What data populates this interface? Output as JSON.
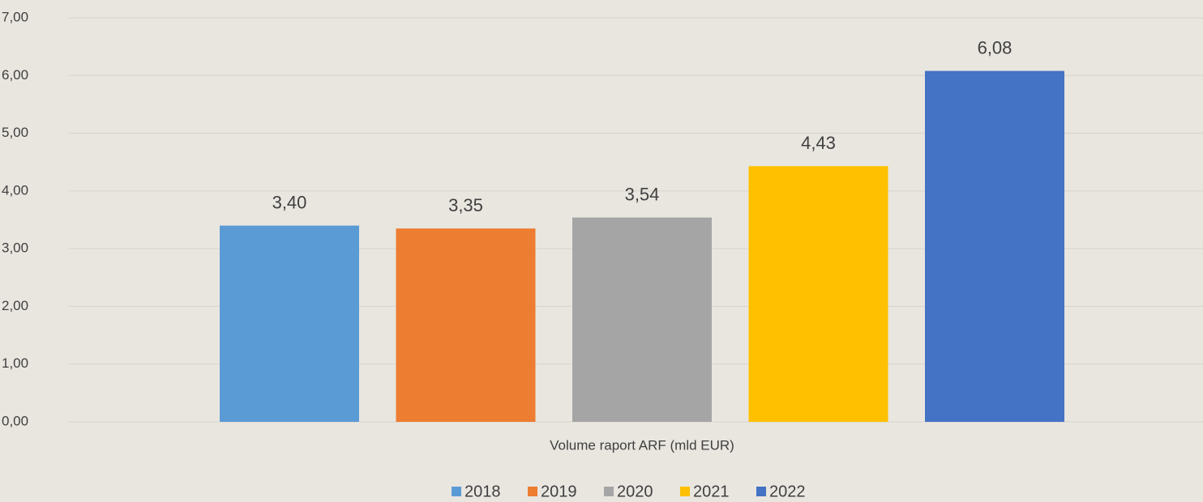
{
  "chart_data": {
    "type": "bar",
    "categories": [
      "Volume raport ARF (mld EUR)"
    ],
    "series": [
      {
        "name": "2018",
        "color": "#5b9bd5",
        "values": [
          3.4
        ],
        "value_labels": [
          "3,40"
        ]
      },
      {
        "name": "2019",
        "color": "#ed7d31",
        "values": [
          3.35
        ],
        "value_labels": [
          "3,35"
        ]
      },
      {
        "name": "2020",
        "color": "#a5a5a5",
        "values": [
          3.54
        ],
        "value_labels": [
          "3,54"
        ]
      },
      {
        "name": "2021",
        "color": "#ffc000",
        "values": [
          4.43
        ],
        "value_labels": [
          "4,43"
        ]
      },
      {
        "name": "2022",
        "color": "#4472c4",
        "values": [
          6.08
        ],
        "value_labels": [
          "6,08"
        ]
      }
    ],
    "ylim": [
      0,
      7
    ],
    "yticks": [
      {
        "value": 0,
        "label": "0,00"
      },
      {
        "value": 1,
        "label": "1,00"
      },
      {
        "value": 2,
        "label": "2,00"
      },
      {
        "value": 3,
        "label": "3,00"
      },
      {
        "value": 4,
        "label": "4,00"
      },
      {
        "value": 5,
        "label": "5,00"
      },
      {
        "value": 6,
        "label": "6,00"
      },
      {
        "value": 7,
        "label": "7,00"
      }
    ],
    "grid": true,
    "legend": "bottom"
  }
}
